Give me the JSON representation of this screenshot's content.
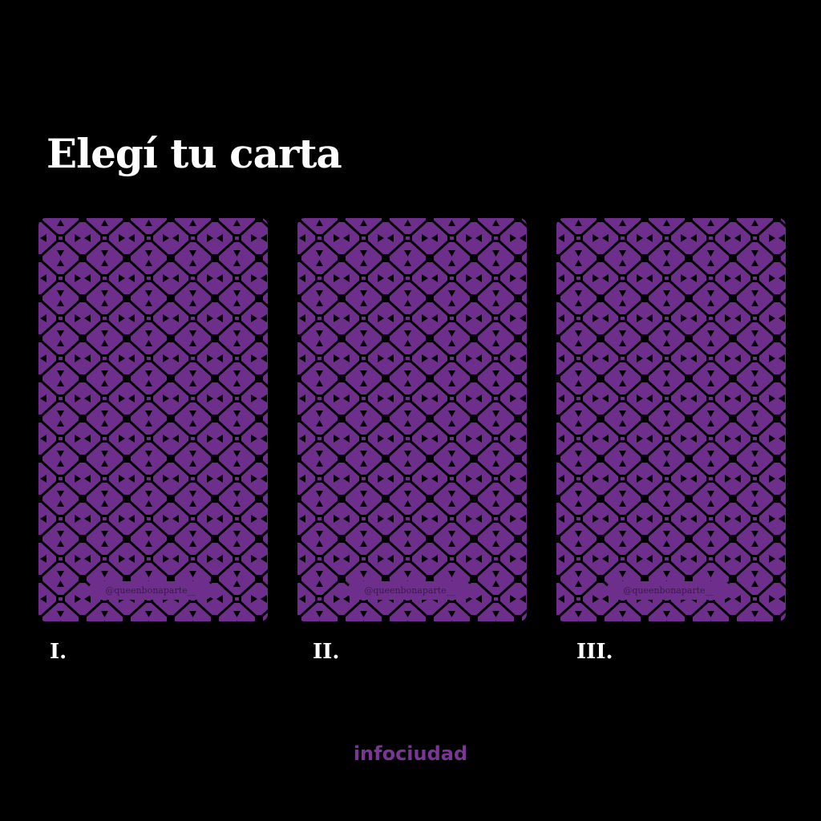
{
  "title": "Elegí tu carta",
  "colors": {
    "background": "#000000",
    "card": "#6e2e8c",
    "accent": "#7a3596"
  },
  "cards": [
    {
      "numeral": "I.",
      "watermark": "@queenbonaparte__"
    },
    {
      "numeral": "II.",
      "watermark": "@queenbonaparte__"
    },
    {
      "numeral": "III.",
      "watermark": "@queenbonaparte__"
    }
  ],
  "footer": {
    "logo": "infociudad"
  }
}
